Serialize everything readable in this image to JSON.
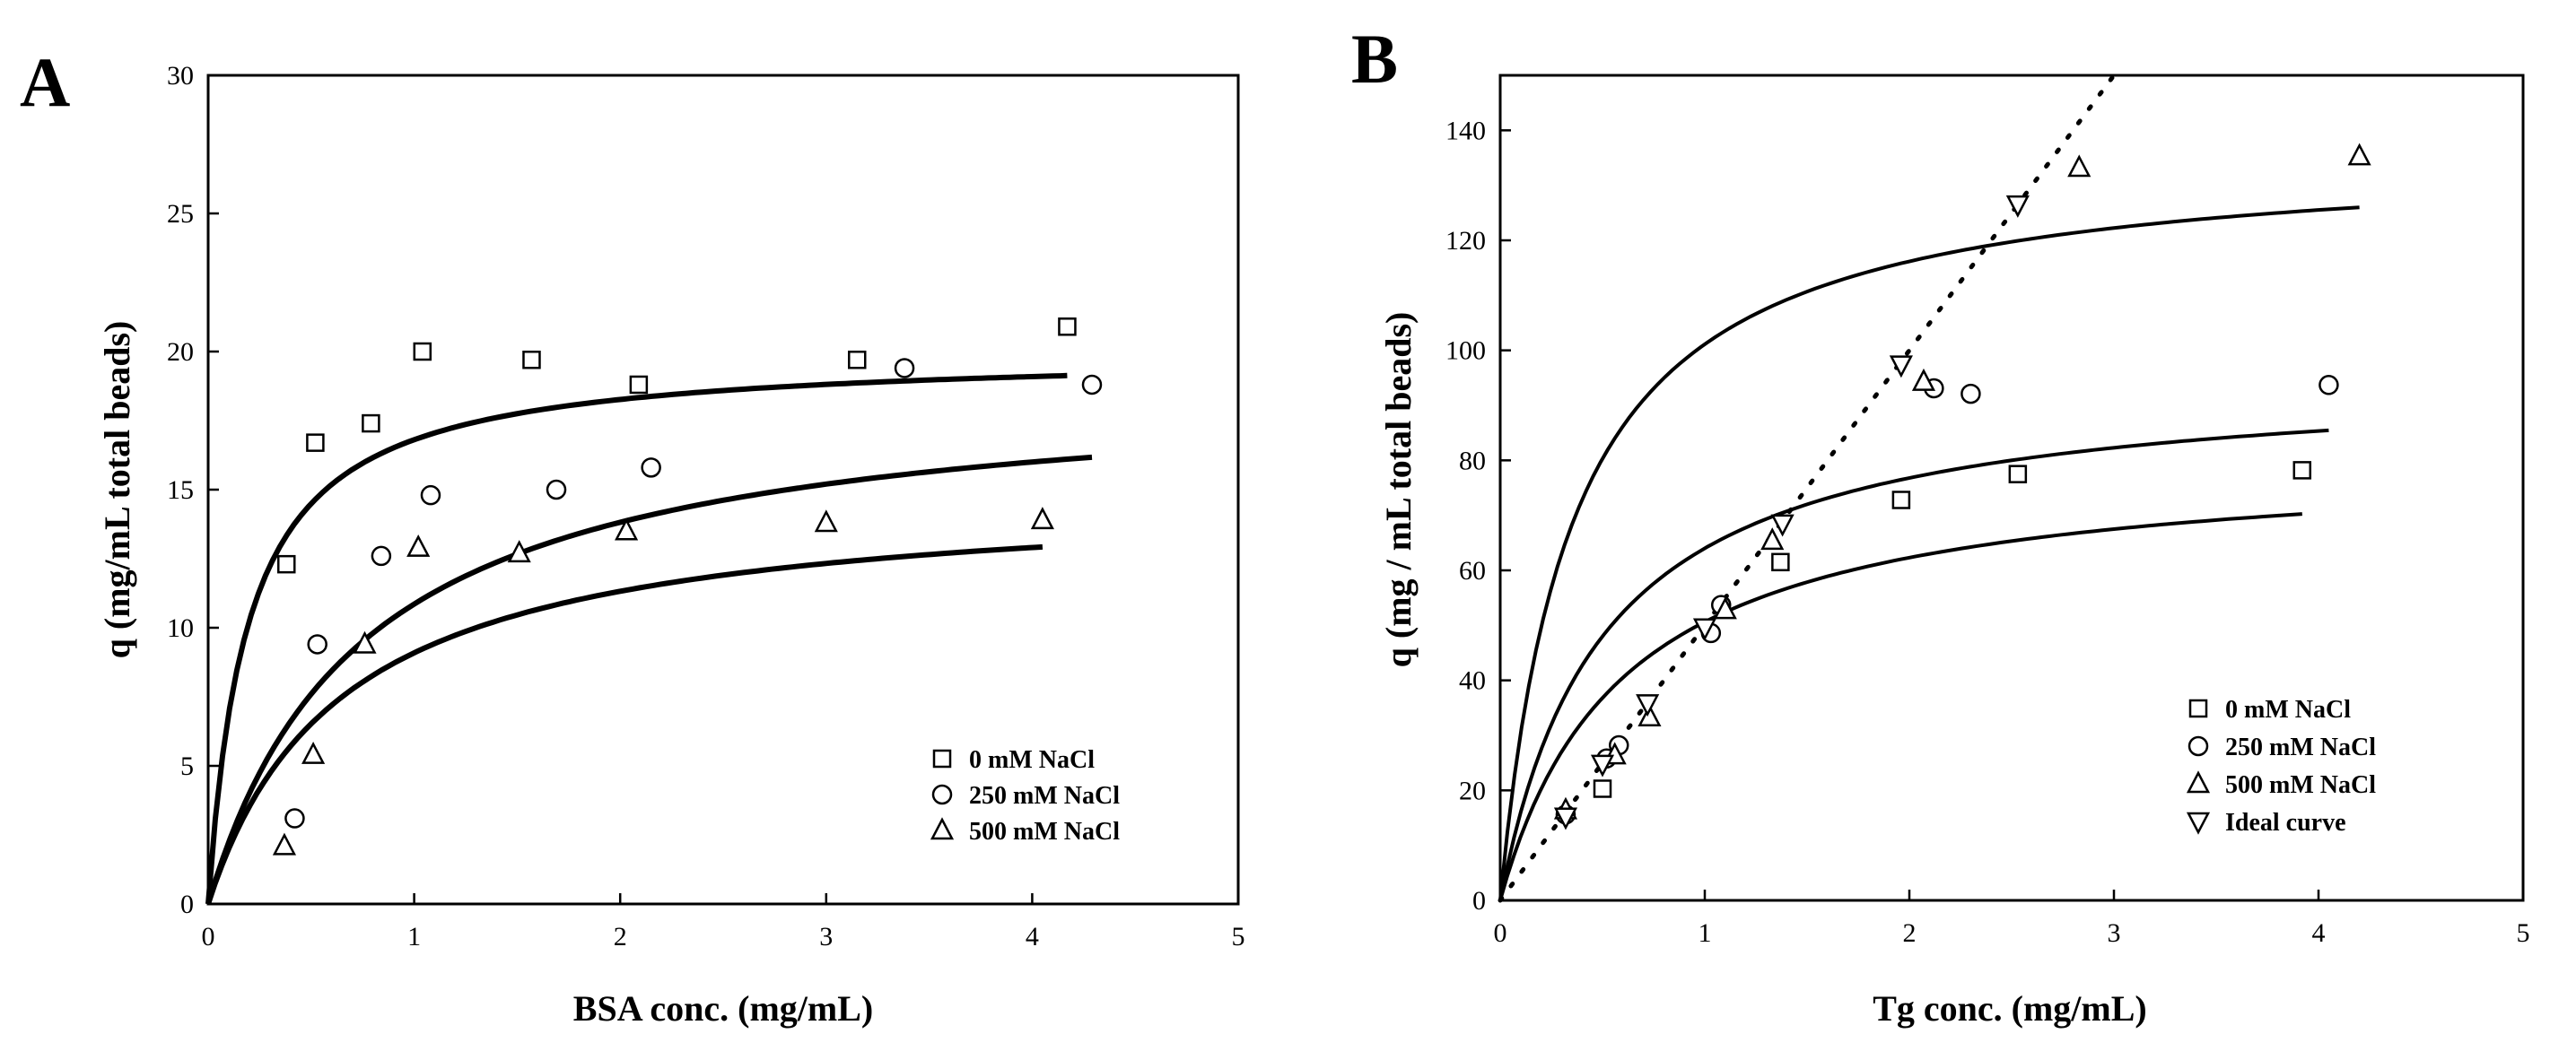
{
  "chart_data": [
    {
      "type": "scatter",
      "panel": "A",
      "xlabel": "BSA conc. (mg/mL)",
      "ylabel": "q (mg/mL total beads)",
      "xlim": [
        0,
        5
      ],
      "ylim": [
        0,
        30
      ],
      "xticks": [
        0,
        1,
        2,
        3,
        4,
        5
      ],
      "yticks": [
        0,
        5,
        10,
        15,
        20,
        25,
        30
      ],
      "legend_position": "bottom-right",
      "series": [
        {
          "name": "0 mM NaCl",
          "marker": "square",
          "x": [
            0.38,
            0.52,
            0.79,
            1.04,
            1.57,
            2.09,
            3.15,
            4.17
          ],
          "y": [
            12.3,
            16.7,
            17.4,
            20.0,
            19.7,
            18.8,
            19.7,
            20.9
          ],
          "fit": {
            "xmax": 4.17,
            "qmax": 20.0,
            "k": 0.19
          }
        },
        {
          "name": "250 mM NaCl",
          "marker": "circle",
          "x": [
            0.42,
            0.53,
            0.84,
            1.08,
            1.69,
            2.15,
            3.38,
            4.29
          ],
          "y": [
            3.1,
            9.4,
            12.6,
            14.8,
            15.0,
            15.8,
            19.4,
            18.8
          ],
          "fit": {
            "xmax": 4.29,
            "qmax": 19.0,
            "k": 0.75
          }
        },
        {
          "name": "500 mM NaCl",
          "marker": "triangle-up",
          "x": [
            0.37,
            0.51,
            0.76,
            1.02,
            1.51,
            2.03,
            3.0,
            4.05
          ],
          "y": [
            2.1,
            5.4,
            9.4,
            12.9,
            12.7,
            13.5,
            13.8,
            13.9
          ],
          "fit": {
            "xmax": 4.05,
            "qmax": 15.0,
            "k": 0.65
          }
        }
      ]
    },
    {
      "type": "scatter",
      "panel": "B",
      "xlabel": "Tg conc. (mg/mL)",
      "ylabel": "q (mg / mL total beads)",
      "xlim": [
        0,
        5
      ],
      "ylim": [
        0,
        150
      ],
      "xticks": [
        0,
        1,
        2,
        3,
        4,
        5
      ],
      "yticks": [
        0,
        20,
        40,
        60,
        80,
        100,
        120,
        140
      ],
      "legend_position": "bottom-right",
      "series": [
        {
          "name": "0 mM NaCl",
          "marker": "square",
          "x": [
            0.5,
            1.37,
            1.96,
            2.53,
            3.92
          ],
          "y": [
            20.3,
            61.5,
            72.8,
            77.5,
            78.2
          ],
          "fit": {
            "xmax": 3.92,
            "qmax": 81,
            "k": 0.6
          }
        },
        {
          "name": "250 mM NaCl",
          "marker": "circle",
          "x": [
            0.32,
            0.52,
            0.58,
            1.03,
            1.08,
            2.12,
            2.3,
            4.05
          ],
          "y": [
            15.6,
            25.8,
            28.2,
            48.6,
            53.7,
            93.1,
            92.1,
            93.7
          ],
          "fit": {
            "xmax": 4.05,
            "qmax": 96,
            "k": 0.5
          }
        },
        {
          "name": "500 mM NaCl",
          "marker": "triangle-up",
          "x": [
            0.32,
            0.56,
            0.73,
            1.1,
            1.33,
            2.07,
            2.83,
            4.2
          ],
          "y": [
            16.4,
            26.4,
            33.3,
            52.8,
            65.4,
            94.3,
            133.2,
            135.3
          ],
          "fit": {
            "xmax": 4.2,
            "qmax": 136.5,
            "k": 0.35
          }
        },
        {
          "name": "Ideal curve",
          "marker": "triangle-down",
          "x": [
            0.32,
            0.5,
            0.72,
            1.0,
            1.38,
            1.96,
            2.53
          ],
          "y": [
            15.2,
            24.8,
            35.8,
            49.6,
            68.5,
            97.4,
            126.5
          ],
          "line": {
            "style": "dotted",
            "slope": 50,
            "xmax": 3.0
          }
        }
      ]
    }
  ]
}
